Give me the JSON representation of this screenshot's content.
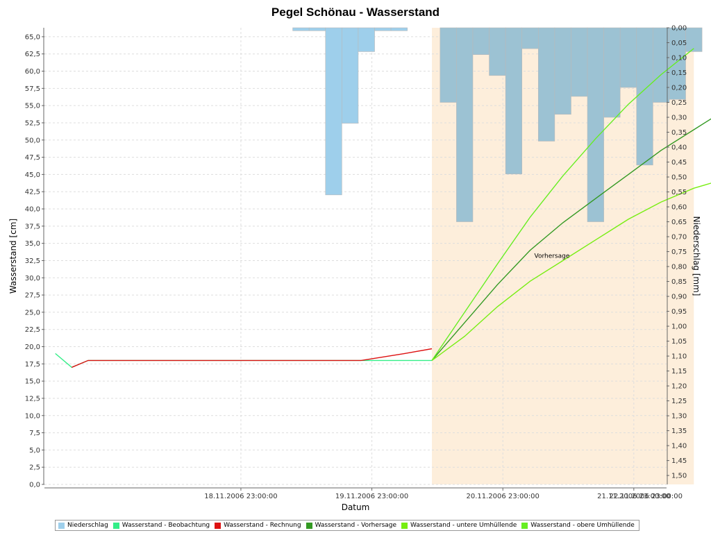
{
  "chart_data": {
    "type": "line+bar",
    "title": "Pegel Schönau - Wasserstand",
    "xlabel": "Datum",
    "ylabel_left": "Wasserstand [cm]",
    "ylabel_right": "Niederschlag [mm]",
    "x_unit": "hours since 2006-11-17 23:00",
    "x_range": [
      -12,
      102
    ],
    "x_ticks": [
      {
        "x": 24,
        "label": "18.11.2006 23:00:00"
      },
      {
        "x": 48,
        "label": "19.11.2006 23:00:00"
      },
      {
        "x": 72,
        "label": "20.11.2006 23:00:00"
      },
      {
        "x": 96,
        "label": "21.11.2006 23:00:00"
      },
      {
        "x": 120,
        "label": "22.11.2006 23:00:00"
      }
    ],
    "y_left_range": [
      0,
      66.3
    ],
    "y_left_ticks": [
      "0,0",
      "2,5",
      "5,0",
      "7,5",
      "10,0",
      "12,5",
      "15,0",
      "17,5",
      "20,0",
      "22,5",
      "25,0",
      "27,5",
      "30,0",
      "32,5",
      "35,0",
      "37,5",
      "40,0",
      "42,5",
      "45,0",
      "47,5",
      "50,0",
      "52,5",
      "55,0",
      "57,5",
      "60,0",
      "62,5",
      "65,0"
    ],
    "y_right_range": [
      0,
      1.53
    ],
    "y_right_ticks": [
      "0,00",
      "0,05",
      "0,10",
      "0,15",
      "0,20",
      "0,25",
      "0,30",
      "0,35",
      "0,40",
      "0,45",
      "0,50",
      "0,55",
      "0,60",
      "0,65",
      "0,70",
      "0,75",
      "0,80",
      "0,85",
      "0,90",
      "0,95",
      "1,00",
      "1,05",
      "1,10",
      "1,15",
      "1,20",
      "1,25",
      "1,30",
      "1,35",
      "1,40",
      "1,45",
      "1,50"
    ],
    "grid": true,
    "forecast_region": {
      "x_start": 59,
      "x_end": 107,
      "color": "#fdeedb"
    },
    "annotation": {
      "text": "Vorhersage",
      "x": 81,
      "y": 32.9
    },
    "legend_position": "bottom",
    "bars": {
      "name": "Niederschlag",
      "axis": "right",
      "width_hours": 3,
      "color_observed": "#9ecfeb",
      "color_forecast": "#9cc2d3",
      "values": [
        {
          "x": 35,
          "value": 0.01
        },
        {
          "x": 38,
          "value": 0.01
        },
        {
          "x": 41,
          "value": 0.56
        },
        {
          "x": 44,
          "value": 0.32
        },
        {
          "x": 47,
          "value": 0.08
        },
        {
          "x": 50,
          "value": 0.01
        },
        {
          "x": 53,
          "value": 0.01
        },
        {
          "x": 62,
          "value": 0.25
        },
        {
          "x": 65,
          "value": 0.65
        },
        {
          "x": 68,
          "value": 0.09
        },
        {
          "x": 71,
          "value": 0.16
        },
        {
          "x": 74,
          "value": 0.49
        },
        {
          "x": 77,
          "value": 0.07
        },
        {
          "x": 80,
          "value": 0.38
        },
        {
          "x": 83,
          "value": 0.29
        },
        {
          "x": 86,
          "value": 0.23
        },
        {
          "x": 89,
          "value": 0.65
        },
        {
          "x": 92,
          "value": 0.3
        },
        {
          "x": 95,
          "value": 0.2
        },
        {
          "x": 98,
          "value": 0.46
        },
        {
          "x": 101,
          "value": 0.25
        },
        {
          "x": 104,
          "value": 0.24
        },
        {
          "x": 107,
          "value": 0.08
        }
      ]
    },
    "series": [
      {
        "name": "Wasserstand - Beobachtung",
        "color": "#33ee88",
        "points": [
          [
            -10,
            19.0
          ],
          [
            -7,
            17.0
          ],
          [
            -4,
            18.0
          ],
          [
            59,
            18.0
          ]
        ]
      },
      {
        "name": "Wasserstand - Rechnung",
        "color": "#dd1111",
        "points": [
          [
            -7,
            17.0
          ],
          [
            -4,
            18.0
          ],
          [
            46,
            18.0
          ],
          [
            50,
            18.5
          ],
          [
            54,
            19.0
          ],
          [
            59,
            19.7
          ]
        ]
      },
      {
        "name": "Wasserstand - Vorhersage",
        "color": "#339922",
        "points": [
          [
            59,
            18.0
          ],
          [
            65,
            23.5
          ],
          [
            71,
            29.0
          ],
          [
            77,
            34.0
          ],
          [
            83,
            38.0
          ],
          [
            89,
            41.5
          ],
          [
            95,
            45.0
          ],
          [
            101,
            48.5
          ],
          [
            107,
            51.5
          ],
          [
            113,
            54.5
          ]
        ]
      },
      {
        "name": "Wasserstand - untere Umhüllende",
        "color": "#77ee11",
        "points": [
          [
            59,
            18.0
          ],
          [
            65,
            21.5
          ],
          [
            71,
            25.8
          ],
          [
            77,
            29.5
          ],
          [
            83,
            32.5
          ],
          [
            89,
            35.5
          ],
          [
            95,
            38.5
          ],
          [
            101,
            41.0
          ],
          [
            107,
            43.0
          ],
          [
            113,
            44.4
          ]
        ]
      },
      {
        "name": "Wasserstand - obere Umhüllende",
        "color": "#66ee22",
        "points": [
          [
            59,
            18.0
          ],
          [
            65,
            25.0
          ],
          [
            71,
            32.0
          ],
          [
            77,
            38.8
          ],
          [
            83,
            44.8
          ],
          [
            89,
            50.2
          ],
          [
            95,
            55.2
          ],
          [
            101,
            59.5
          ],
          [
            107,
            63.3
          ]
        ]
      }
    ]
  },
  "legend": {
    "items": [
      {
        "label": "Niederschlag",
        "color": "#9ecfeb"
      },
      {
        "label": "Wasserstand - Beobachtung",
        "color": "#33ee88"
      },
      {
        "label": "Wasserstand - Rechnung",
        "color": "#dd1111"
      },
      {
        "label": "Wasserstand - Vorhersage",
        "color": "#339922"
      },
      {
        "label": "Wasserstand - untere Umhüllende",
        "color": "#77ee11"
      },
      {
        "label": "Wasserstand - obere Umhüllende",
        "color": "#66ee22"
      }
    ]
  }
}
